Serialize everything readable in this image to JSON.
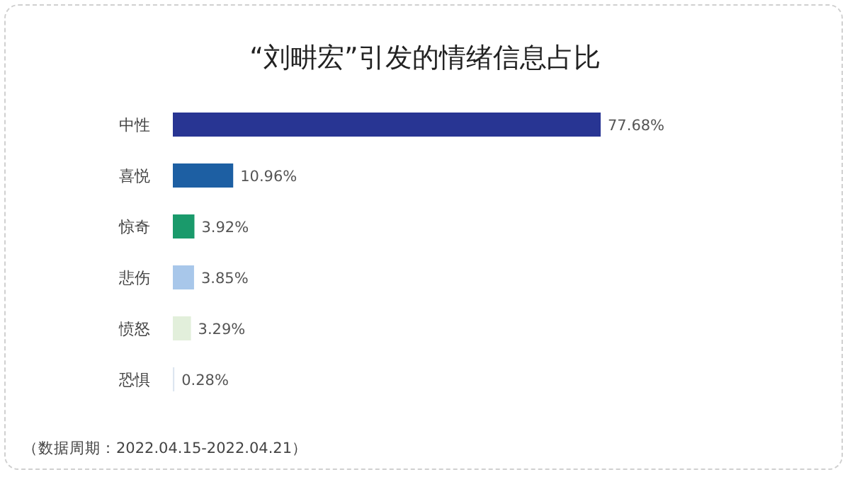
{
  "chart_data": {
    "type": "bar",
    "orientation": "horizontal",
    "title": "“刘畊宏”引发的情绪信息占比",
    "categories": [
      "中性",
      "喜悦",
      "惊奇",
      "悲伤",
      "愤怒",
      "恐惧"
    ],
    "values": [
      77.68,
      10.96,
      3.92,
      3.85,
      3.29,
      0.28
    ],
    "colors": [
      "#283593",
      "#1d5fa3",
      "#1a9a6b",
      "#a8c7ea",
      "#e2efdb",
      "#dde6f0"
    ],
    "value_labels": [
      "77.68%",
      "10.96%",
      "3.92%",
      "3.85%",
      "3.29%",
      "0.28%"
    ],
    "annotations": [
      "（数据周期：2022.04.15-2022.04.21）"
    ]
  }
}
